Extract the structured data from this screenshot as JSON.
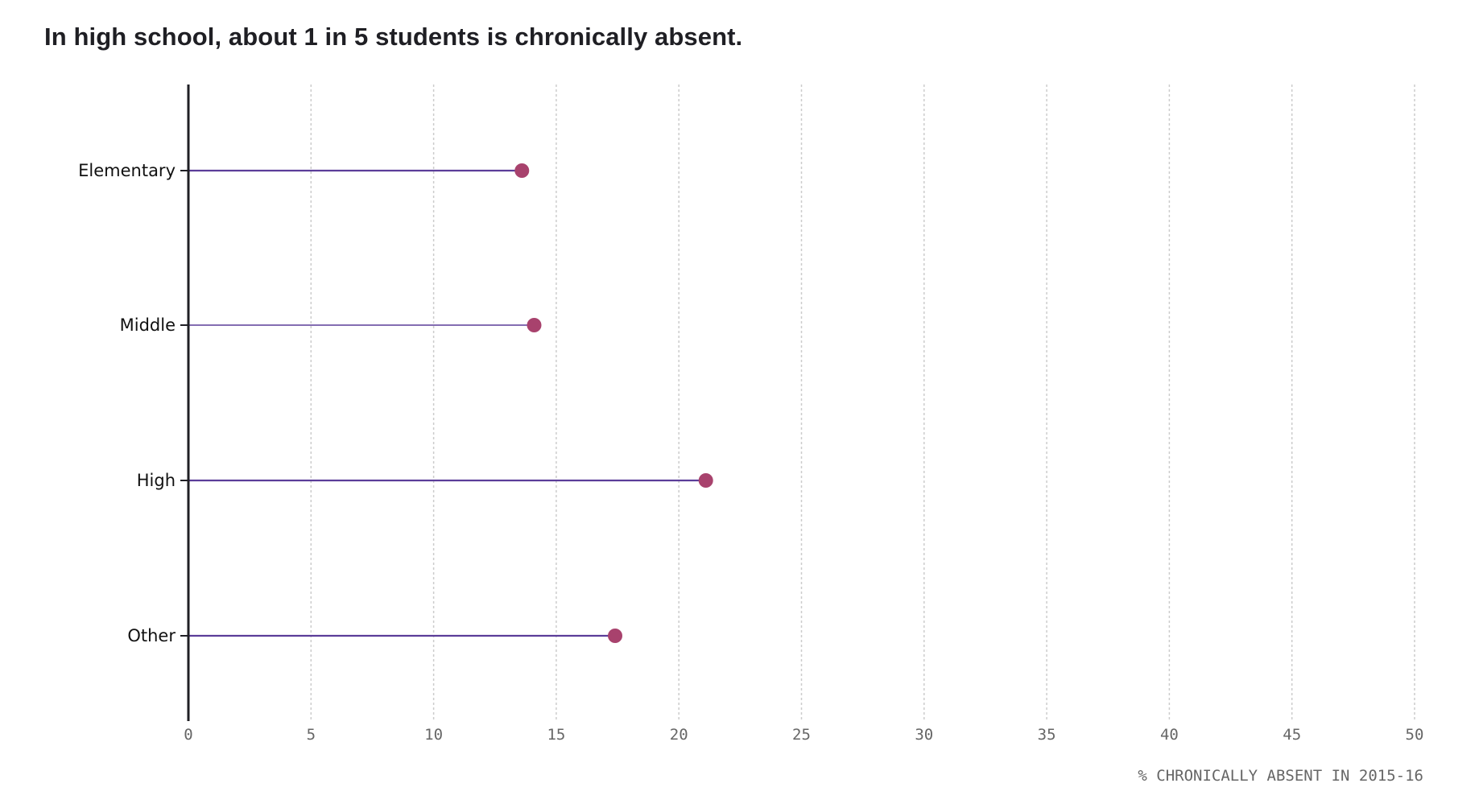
{
  "title": "In high school, about 1 in 5 students is chronically absent.",
  "colors": {
    "stem": "#5b3d99",
    "dot": "#a8426d",
    "axis": "#1f1f24",
    "grid": "#cccccc",
    "tick_text": "#666666"
  },
  "chart_data": {
    "type": "lollipop",
    "title": "In high school, about 1 in 5 students is chronically absent.",
    "xlabel": "% CHRONICALLY ABSENT IN 2015-16",
    "ylabel": "",
    "categories": [
      "Elementary",
      "Middle",
      "High",
      "Other"
    ],
    "values": [
      13.6,
      14.1,
      21.1,
      17.4
    ],
    "xlim": [
      0,
      50
    ],
    "xticks": [
      0,
      5,
      10,
      15,
      20,
      25,
      30,
      35,
      40,
      45,
      50
    ],
    "grid": "vertical dotted",
    "legend": null
  }
}
